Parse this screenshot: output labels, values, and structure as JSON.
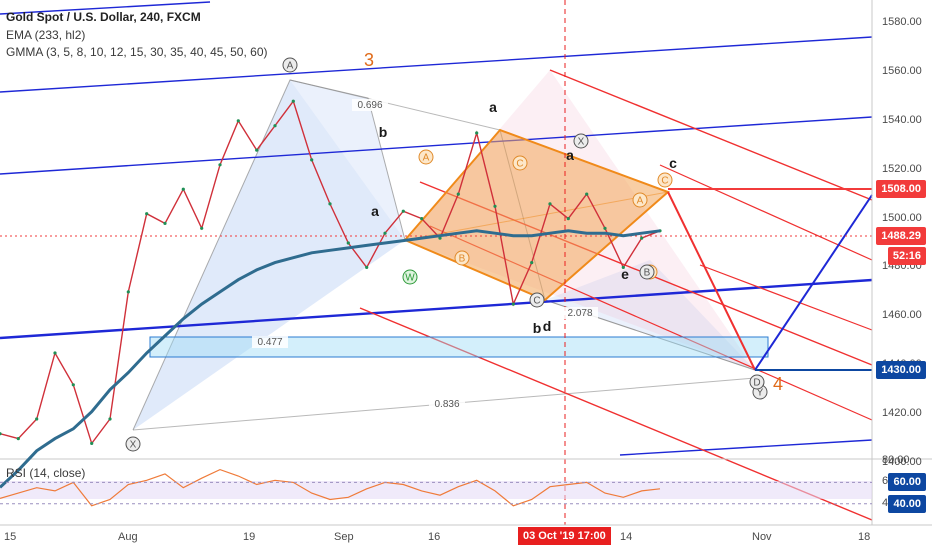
{
  "header": {
    "symbol": "Gold Spot / U.S. Dollar, 240, FXCM",
    "ema": "EMA (233, hl2)",
    "gmma": "GMMA (3, 5, 8, 10, 12, 15, 30, 35, 40, 45, 50, 60)"
  },
  "rsi_label": "RSI (14, close)",
  "chart_data": [
    {
      "type": "line",
      "series": [
        {
          "values": [
            1412,
            1410,
            1418,
            1445,
            1432,
            1408,
            1418,
            1470,
            1502,
            1498,
            1512,
            1496,
            1522,
            1540,
            1528,
            1538,
            1548,
            1524,
            1506,
            1490,
            1480,
            1494,
            1503,
            1500,
            1492,
            1510,
            1535,
            1505,
            1465,
            1482,
            1506,
            1500,
            1510,
            1496,
            1480,
            1492,
            1495
          ]
        },
        {
          "values": [
            1390,
            1397,
            1405,
            1410,
            1414,
            1421,
            1430,
            1437,
            1445,
            1452,
            1459,
            1465,
            1470,
            1475,
            1479,
            1482,
            1484,
            1486,
            1487,
            1488,
            1489,
            1490,
            1491,
            1492,
            1493,
            1494,
            1495,
            1494,
            1493,
            1493,
            1494,
            1495,
            1494,
            1494,
            1493,
            1494,
            1495
          ]
        }
      ],
      "x_ticks": [
        "15",
        "Aug",
        "19",
        "Sep",
        "16",
        "Oct",
        "14",
        "Nov",
        "18"
      ],
      "y_ticks": [
        "1400.00",
        "1420.00",
        "1440.00",
        "1460.00",
        "1480.00",
        "1500.00",
        "1520.00",
        "1540.00",
        "1560.00",
        "1580.00"
      ],
      "ylim": [
        1390,
        1588
      ],
      "price_tags": [
        {
          "value": 1508.0,
          "label": "1508.00",
          "color": "#f23b3b"
        },
        {
          "value": 1488.29,
          "label": "1488.29",
          "color": "#f23b3b"
        },
        {
          "value": 1482.5,
          "label": "52:16",
          "color": "#f23b3b"
        },
        {
          "value": 1430.0,
          "label": "1430.00",
          "color": "#0d47a1"
        }
      ],
      "crosshair_tag": "03 Oct '19   17:00",
      "annotations": {
        "elliott_orange": [
          "3",
          "4"
        ],
        "wave_letters": [
          "a",
          "b",
          "a",
          "b",
          "a",
          "c",
          "e",
          "d",
          "b"
        ],
        "circled_orange": [
          "A",
          "B",
          "C",
          "A",
          "B",
          "C"
        ],
        "circled_green": [
          "W"
        ],
        "circled_gray": [
          "X",
          "Y",
          "C",
          "D",
          "B",
          "X",
          "A"
        ],
        "ratios": [
          "0.696",
          "2.078",
          "0.477",
          "0.836"
        ]
      }
    },
    {
      "type": "line",
      "title": "RSI (14, close)",
      "series": [
        {
          "values": [
            45,
            50,
            55,
            52,
            60,
            38,
            44,
            58,
            62,
            68,
            55,
            64,
            72,
            66,
            58,
            62,
            60,
            50,
            44,
            46,
            54,
            60,
            58,
            52,
            48,
            56,
            62,
            52,
            38,
            44,
            56,
            58,
            60,
            50,
            46,
            52,
            54
          ]
        }
      ],
      "y_ticks": [
        "80.00",
        "60.00",
        "40.00"
      ],
      "levels": [
        {
          "value": 60,
          "label": "60.00"
        },
        {
          "value": 40,
          "label": "40.00"
        }
      ],
      "ylim": [
        20,
        82
      ]
    }
  ]
}
